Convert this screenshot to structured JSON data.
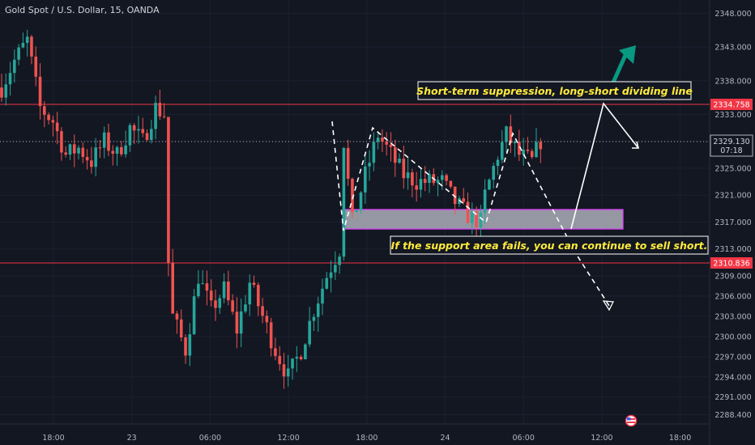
{
  "header": {
    "title": "Gold Spot / U.S. Dollar, 15, OANDA"
  },
  "price_axis": {
    "ticks": [
      "2348.000",
      "2343.000",
      "2338.000",
      "2333.000",
      "2329.000",
      "2325.000",
      "2321.000",
      "2317.000",
      "2313.000",
      "2309.000",
      "2306.000",
      "2303.000",
      "2300.000",
      "2297.000",
      "2294.000",
      "2291.000",
      "2288.400"
    ],
    "resistance_label": "2334.758",
    "support_label": "2310.836",
    "current_price": "2329.130",
    "countdown": "07:18"
  },
  "time_axis": {
    "ticks": [
      "18:00",
      "23",
      "06:00",
      "12:00",
      "18:00",
      "24",
      "06:00",
      "12:00",
      "18:00"
    ]
  },
  "annotations": {
    "top_note": "Short-term suppression, long-short dividing line",
    "bottom_note": "If the support area fails, you can continue to sell short."
  },
  "colors": {
    "up": "#26a69a",
    "down": "#ef5350",
    "level": "#f23645",
    "zone": "#b2b5be",
    "zone_border": "#e040fb",
    "note": "#ffeb3b",
    "arrow_up": "#089981"
  },
  "chart_data": {
    "type": "candlestick",
    "title": "Gold Spot / U.S. Dollar, 15, OANDA",
    "y_unit": "USD",
    "ylim": [
      2287,
      2350
    ],
    "x_ticks": [
      "18:00",
      "23",
      "06:00",
      "12:00",
      "18:00",
      "24",
      "06:00",
      "12:00",
      "18:00"
    ],
    "horizontal_levels": [
      2334.758,
      2310.836
    ],
    "current_price": 2329.13,
    "support_zone": [
      2316.2,
      2319.4
    ],
    "close_path": [
      [
        0,
        2337
      ],
      [
        3,
        2341
      ],
      [
        6,
        2344
      ],
      [
        9,
        2334
      ],
      [
        12,
        2332
      ],
      [
        15,
        2327
      ],
      [
        18,
        2328
      ],
      [
        21,
        2326
      ],
      [
        24,
        2329
      ],
      [
        27,
        2327
      ],
      [
        30,
        2331
      ],
      [
        33,
        2329
      ],
      [
        36,
        2334
      ],
      [
        38,
        2333
      ],
      [
        39,
        2311
      ],
      [
        40,
        2303
      ],
      [
        43,
        2298
      ],
      [
        46,
        2309
      ],
      [
        49,
        2304
      ],
      [
        52,
        2307
      ],
      [
        55,
        2301
      ],
      [
        58,
        2308
      ],
      [
        61,
        2303
      ],
      [
        64,
        2298
      ],
      [
        67,
        2294
      ],
      [
        70,
        2298
      ],
      [
        73,
        2304
      ],
      [
        76,
        2309
      ],
      [
        79,
        2313
      ],
      [
        80,
        2329
      ],
      [
        82,
        2317
      ],
      [
        85,
        2324
      ],
      [
        88,
        2330
      ],
      [
        91,
        2327
      ],
      [
        94,
        2324
      ],
      [
        97,
        2323
      ],
      [
        100,
        2323
      ],
      [
        103,
        2323
      ],
      [
        106,
        2320
      ],
      [
        109,
        2318
      ],
      [
        112,
        2317
      ],
      [
        113,
        2321
      ],
      [
        116,
        2327
      ],
      [
        118,
        2330
      ],
      [
        121,
        2327
      ],
      [
        124,
        2326
      ],
      [
        126,
        2329.1
      ]
    ]
  }
}
